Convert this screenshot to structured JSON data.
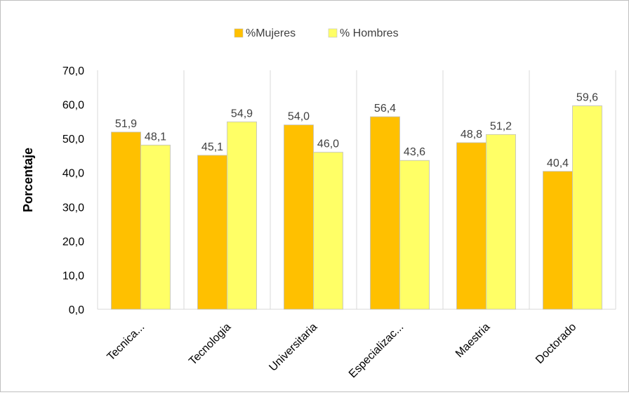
{
  "chart_data": {
    "type": "bar",
    "title": "",
    "xlabel": "",
    "ylabel": "Porcentaje",
    "ylim": [
      0,
      70
    ],
    "yticks": [
      "0,0",
      "10,0",
      "20,0",
      "30,0",
      "40,0",
      "50,0",
      "60,0",
      "70,0"
    ],
    "ytick_values": [
      0,
      10,
      20,
      30,
      40,
      50,
      60,
      70
    ],
    "categories": [
      "Tecnica...",
      "Tecnologia",
      "Universitaria",
      "Especializac...",
      "Maestria",
      "Doctorado"
    ],
    "series": [
      {
        "name": "%Mujeres",
        "color": "#FFC000",
        "values": [
          51.9,
          45.1,
          54.0,
          56.4,
          48.8,
          40.4
        ],
        "labels": [
          "51,9",
          "45,1",
          "54,0",
          "56,4",
          "48,8",
          "40,4"
        ]
      },
      {
        "name": "% Hombres",
        "color": "#FFFF66",
        "values": [
          48.1,
          54.9,
          46.0,
          43.6,
          51.2,
          59.6
        ],
        "labels": [
          "48,1",
          "54,9",
          "46,0",
          "43,6",
          "51,2",
          "59,6"
        ]
      }
    ],
    "grid": "vertical category separators",
    "legend_position": "top-center"
  }
}
